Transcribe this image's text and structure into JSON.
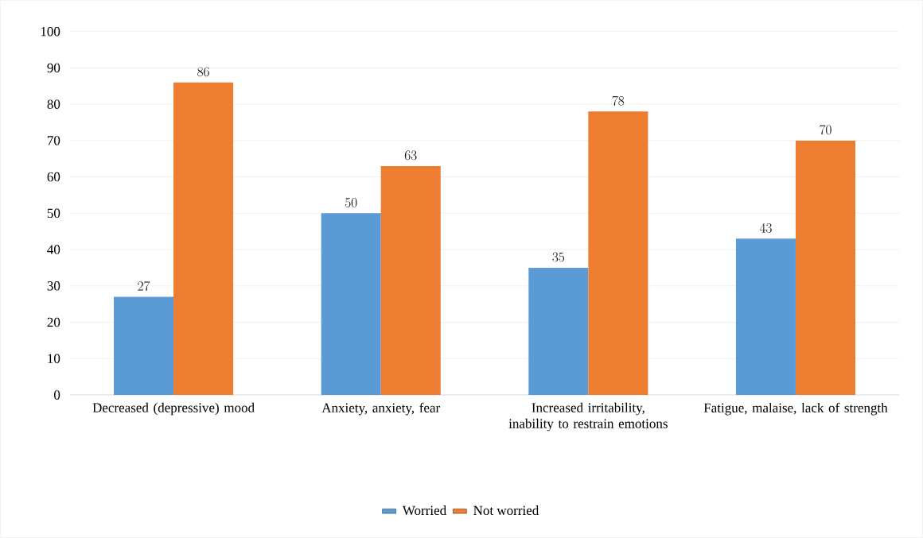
{
  "chart_data": {
    "type": "bar",
    "categories": [
      "Decreased (depressive) mood",
      "Anxiety, anxiety, fear",
      "Increased irritability, inability to restrain emotions",
      "Fatigue, malaise, lack of strength"
    ],
    "series": [
      {
        "name": "Worried",
        "color": "#5b9bd5",
        "values": [
          27,
          50,
          35,
          43
        ]
      },
      {
        "name": "Not worried",
        "color": "#ed7d31",
        "values": [
          86,
          63,
          78,
          70
        ]
      }
    ],
    "ylim": [
      0,
      100
    ],
    "yticks": [
      0,
      10,
      20,
      30,
      40,
      50,
      60,
      70,
      80,
      90,
      100
    ],
    "grid": "y",
    "legend": "bottom",
    "data_labels": true
  }
}
